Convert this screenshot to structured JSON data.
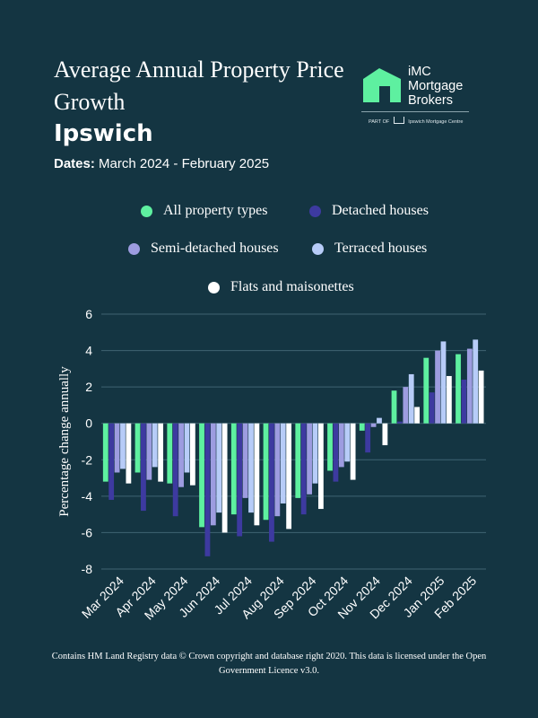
{
  "header": {
    "title": "Average Annual Property Price Growth",
    "location": "Ipswich",
    "dates_label": "Dates:",
    "dates_value": "March 2024 - February 2025"
  },
  "logo": {
    "line1": "iMC",
    "line2": "Mortgage",
    "line3": "Brokers",
    "part_of": "PART OF",
    "parent": "Ipswich Mortgage Centre",
    "brand_color": "#5ef0a0"
  },
  "footer": {
    "text": "Contains HM Land Registry data © Crown copyright and database right 2020. This data is licensed under the Open Government Licence v3.0."
  },
  "chart_data": {
    "type": "bar",
    "ylabel": "Percentage change annually",
    "xlabel": "",
    "ylim": [
      -8,
      6
    ],
    "yticks": [
      6,
      4,
      2,
      0,
      -2,
      -4,
      -6,
      -8
    ],
    "grid": true,
    "legend_position": "top",
    "categories": [
      "Mar 2024",
      "Apr 2024",
      "May 2024",
      "Jun 2024",
      "Jul 2024",
      "Aug 2024",
      "Sep 2024",
      "Oct 2024",
      "Nov 2024",
      "Dec 2024",
      "Jan 2025",
      "Feb 2025"
    ],
    "series": [
      {
        "name": "All property types",
        "color": "#5ef0a0",
        "values": [
          -3.2,
          -2.7,
          -3.3,
          -5.7,
          -5.0,
          -5.3,
          -4.1,
          -2.6,
          -0.4,
          1.8,
          3.6,
          3.8
        ]
      },
      {
        "name": "Detached houses",
        "color": "#3d3aa0",
        "values": [
          -4.2,
          -4.8,
          -5.1,
          -7.3,
          -6.2,
          -6.5,
          -5.0,
          -3.2,
          -1.6,
          0.1,
          1.7,
          2.4
        ]
      },
      {
        "name": "Semi-detached houses",
        "color": "#9d9ce0",
        "values": [
          -2.7,
          -3.1,
          -3.5,
          -5.6,
          -4.1,
          -5.1,
          -3.9,
          -2.4,
          -0.2,
          2.0,
          4.0,
          4.1
        ]
      },
      {
        "name": "Terraced houses",
        "color": "#b7ccf8",
        "values": [
          -2.5,
          -2.4,
          -2.7,
          -4.9,
          -4.9,
          -4.4,
          -3.3,
          -2.1,
          0.3,
          2.7,
          4.5,
          4.6
        ]
      },
      {
        "name": "Flats and maisonettes",
        "color": "#ffffff",
        "values": [
          -3.3,
          -3.2,
          -3.4,
          -6.0,
          -5.6,
          -5.8,
          -4.7,
          -3.1,
          -1.2,
          0.9,
          2.6,
          2.9
        ]
      }
    ]
  }
}
